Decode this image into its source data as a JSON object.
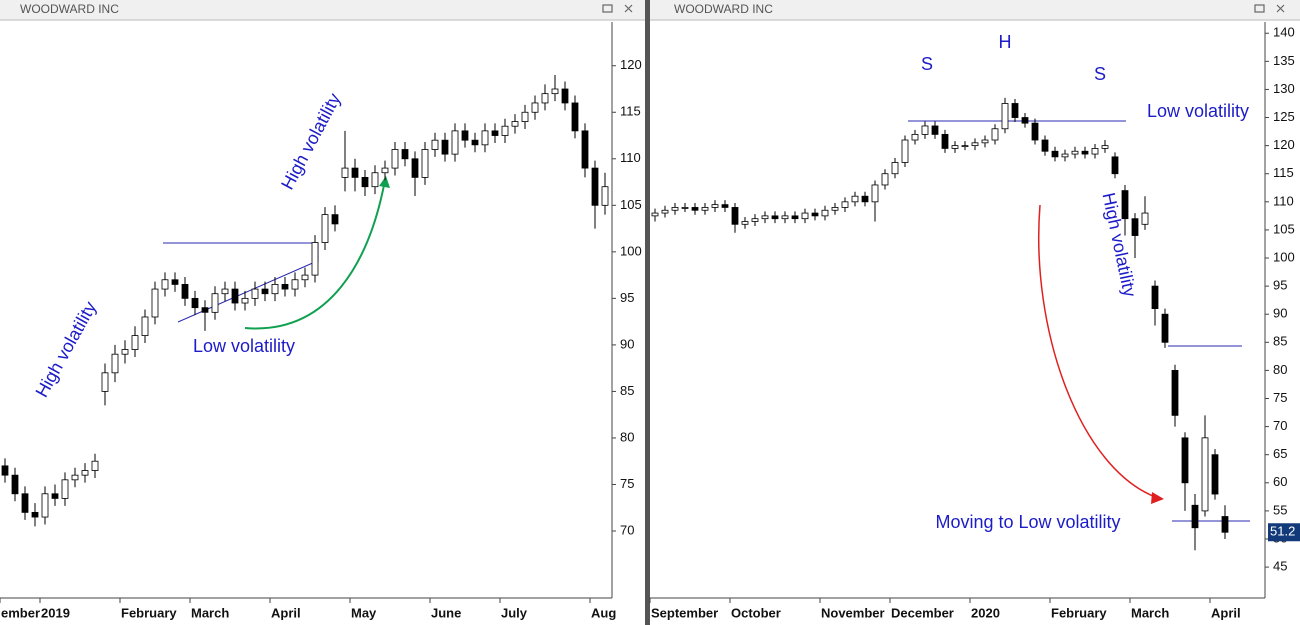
{
  "chart_data": [
    {
      "type": "candlestick",
      "title": "WOODWARD INC",
      "ohlc": [
        [
          77,
          77.8,
          75.2,
          76
        ],
        [
          76,
          76.8,
          73.2,
          74
        ],
        [
          74,
          74.8,
          71.2,
          72
        ],
        [
          72,
          73,
          70.5,
          71.5
        ],
        [
          71.5,
          74.8,
          70.7,
          74
        ],
        [
          74,
          75,
          72.7,
          73.5
        ],
        [
          73.5,
          76.3,
          72.7,
          75.5
        ],
        [
          75.5,
          76.8,
          74.7,
          76
        ],
        [
          76,
          77.3,
          75.2,
          76.5
        ],
        [
          76.5,
          78.3,
          75.7,
          77.5
        ],
        [
          85,
          88,
          83.5,
          87
        ],
        [
          87,
          90,
          86,
          89
        ],
        [
          89,
          90.5,
          88,
          89.5
        ],
        [
          89.5,
          92,
          88.7,
          91
        ],
        [
          91,
          93.8,
          90.2,
          93
        ],
        [
          93,
          96.8,
          92.2,
          96
        ],
        [
          96,
          97.8,
          95.2,
          97
        ],
        [
          97,
          97.8,
          95.7,
          96.5
        ],
        [
          96.5,
          97.3,
          94.2,
          95
        ],
        [
          95,
          95.8,
          93.2,
          94
        ],
        [
          94,
          94.8,
          91.5,
          93.5
        ],
        [
          93.5,
          96.3,
          92.7,
          95.5
        ],
        [
          95.5,
          96.8,
          94.7,
          96
        ],
        [
          96,
          96.8,
          93.7,
          94.5
        ],
        [
          94.5,
          95.8,
          93.7,
          95
        ],
        [
          95,
          96.8,
          94.2,
          96
        ],
        [
          96,
          96.8,
          94.7,
          95.5
        ],
        [
          95.5,
          97.3,
          94.7,
          96.5
        ],
        [
          96.5,
          97.3,
          95.2,
          96
        ],
        [
          96,
          97.8,
          95.2,
          97
        ],
        [
          97,
          98.3,
          96.2,
          97.5
        ],
        [
          97.5,
          101.8,
          96.7,
          101
        ],
        [
          101,
          104.8,
          100.2,
          104
        ],
        [
          104,
          105,
          102.2,
          103
        ],
        [
          108,
          113,
          106.5,
          109
        ],
        [
          109,
          110,
          106.5,
          108
        ],
        [
          108,
          108.8,
          106,
          107
        ],
        [
          107,
          109.3,
          106.2,
          108.5
        ],
        [
          108.5,
          109.8,
          107.7,
          109
        ],
        [
          109,
          111.8,
          108.2,
          111
        ],
        [
          111,
          111.8,
          109.2,
          110
        ],
        [
          110,
          110.8,
          106,
          108
        ],
        [
          108,
          111.8,
          107.2,
          111
        ],
        [
          111,
          112.8,
          110.2,
          112
        ],
        [
          112,
          112.8,
          109.7,
          110.5
        ],
        [
          110.5,
          113.8,
          109.7,
          113
        ],
        [
          113,
          113.8,
          111.2,
          112
        ],
        [
          112,
          112.8,
          110.7,
          111.5
        ],
        [
          111.5,
          113.8,
          110.7,
          113
        ],
        [
          113,
          113.8,
          111.7,
          112.5
        ],
        [
          112.5,
          114.3,
          111.7,
          113.5
        ],
        [
          113.5,
          114.8,
          112.7,
          114
        ],
        [
          114,
          115.8,
          113.2,
          115
        ],
        [
          115,
          116.8,
          114.2,
          116
        ],
        [
          116,
          118,
          115.2,
          117
        ],
        [
          117,
          119,
          116.2,
          117.5
        ],
        [
          117.5,
          118.3,
          115.2,
          116
        ],
        [
          116,
          116.8,
          112.2,
          113
        ],
        [
          113,
          113.8,
          108,
          109
        ],
        [
          109,
          109.8,
          102.5,
          105
        ],
        [
          105,
          108.5,
          104,
          107
        ]
      ],
      "xlim": [
        0,
        61.2
      ],
      "ylim": [
        62.8,
        124.7
      ],
      "yticks": [
        70,
        75,
        80,
        85,
        90,
        95,
        100,
        105,
        110,
        115,
        120
      ],
      "xticks": [
        {
          "value": 0,
          "label": "ember"
        },
        {
          "value": 4,
          "label": "2019"
        },
        {
          "value": 12,
          "label": "February"
        },
        {
          "value": 19,
          "label": "March"
        },
        {
          "value": 27,
          "label": "April"
        },
        {
          "value": 35,
          "label": "May"
        },
        {
          "value": 43,
          "label": "June"
        },
        {
          "value": 50,
          "label": "July"
        },
        {
          "value": 59,
          "label": "Aug"
        }
      ],
      "annotations": [
        "High volatility",
        "Low volatility",
        "High volatility"
      ]
    },
    {
      "type": "candlestick",
      "title": "WOODWARD INC",
      "ohlc": [
        [
          107.5,
          108.8,
          106.5,
          108
        ],
        [
          108,
          109.3,
          107.2,
          108.5
        ],
        [
          108.5,
          109.8,
          107.7,
          109
        ],
        [
          109,
          109.8,
          108.2,
          109
        ],
        [
          109,
          109.8,
          107.7,
          108.5
        ],
        [
          108.5,
          109.8,
          107.7,
          109
        ],
        [
          109,
          110.3,
          108.2,
          109.5
        ],
        [
          109.5,
          110.3,
          108.2,
          109
        ],
        [
          109,
          109.8,
          104.5,
          106
        ],
        [
          106,
          107.3,
          105.2,
          106.5
        ],
        [
          106.5,
          107.8,
          105.7,
          107
        ],
        [
          107,
          108.3,
          106.2,
          107.5
        ],
        [
          107.5,
          108.3,
          106.2,
          107
        ],
        [
          107,
          108.3,
          106.2,
          107.5
        ],
        [
          107.5,
          108.3,
          106.2,
          107
        ],
        [
          107,
          108.8,
          106.2,
          108
        ],
        [
          108,
          108.8,
          106.7,
          107.5
        ],
        [
          107.5,
          109.3,
          106.7,
          108.5
        ],
        [
          108.5,
          109.8,
          107.7,
          109
        ],
        [
          109,
          110.8,
          108.2,
          110
        ],
        [
          110,
          111.8,
          109.2,
          111
        ],
        [
          111,
          111.8,
          109.2,
          110
        ],
        [
          110,
          113.8,
          106.5,
          113
        ],
        [
          113,
          115.8,
          112.2,
          115
        ],
        [
          115,
          117.8,
          114.2,
          117
        ],
        [
          117,
          121.8,
          116.2,
          121
        ],
        [
          121,
          122.8,
          120.2,
          122
        ],
        [
          122,
          124.3,
          121.2,
          123.5
        ],
        [
          123.5,
          124.3,
          121.2,
          122
        ],
        [
          122,
          122.8,
          118.7,
          119.5
        ],
        [
          119.5,
          120.8,
          118.7,
          120
        ],
        [
          120,
          120.8,
          119.2,
          120
        ],
        [
          120,
          121.3,
          119.2,
          120.5
        ],
        [
          120.5,
          121.8,
          119.7,
          121
        ],
        [
          121,
          123.8,
          120.2,
          123
        ],
        [
          123,
          128.5,
          122.2,
          127.5
        ],
        [
          127.5,
          128.3,
          124.2,
          125
        ],
        [
          125,
          125.8,
          123.2,
          124
        ],
        [
          124,
          124.8,
          120.2,
          121
        ],
        [
          121,
          121.8,
          118.2,
          119
        ],
        [
          119,
          119.8,
          117.2,
          118
        ],
        [
          118,
          119.3,
          117.2,
          118.5
        ],
        [
          118.5,
          119.8,
          117.7,
          119
        ],
        [
          119,
          119.8,
          117.7,
          118.5
        ],
        [
          118.5,
          120.3,
          117.7,
          119.5
        ],
        [
          119.5,
          121,
          118.7,
          120
        ],
        [
          118,
          118.8,
          114.2,
          115
        ],
        [
          112,
          113,
          104,
          107
        ],
        [
          107,
          108,
          100,
          104
        ],
        [
          106,
          111,
          105,
          108
        ],
        [
          95,
          96,
          88,
          91
        ],
        [
          90,
          91,
          84,
          85
        ],
        [
          80,
          81,
          70,
          72
        ],
        [
          68,
          69,
          55,
          60
        ],
        [
          56,
          58,
          48,
          52
        ],
        [
          55,
          72,
          54,
          68
        ],
        [
          65,
          66,
          57,
          58
        ],
        [
          54,
          56,
          50,
          51.2
        ]
      ],
      "xlim": [
        0,
        61.5
      ],
      "ylim": [
        39.5,
        142
      ],
      "yticks": [
        45,
        50,
        55,
        60,
        65,
        70,
        75,
        80,
        85,
        90,
        95,
        100,
        105,
        110,
        115,
        120,
        125,
        130,
        135,
        140
      ],
      "xticks": [
        {
          "value": 0,
          "label": "September"
        },
        {
          "value": 8,
          "label": "October"
        },
        {
          "value": 17,
          "label": "November"
        },
        {
          "value": 24,
          "label": "December"
        },
        {
          "value": 32,
          "label": "2020"
        },
        {
          "value": 40,
          "label": "February"
        },
        {
          "value": 48,
          "label": "March"
        },
        {
          "value": 56,
          "label": "April"
        }
      ],
      "last_value": 51.2,
      "annotations": [
        "S",
        "H",
        "S",
        "Low volatility",
        "High volatility",
        "Moving to Low volatility"
      ]
    }
  ]
}
